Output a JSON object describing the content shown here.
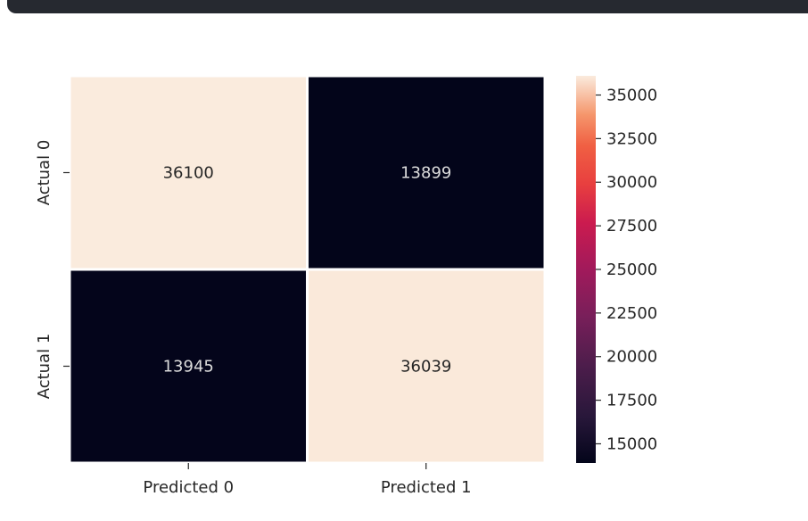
{
  "toolbar": {
    "bar_color": "#262930"
  },
  "chart_data": {
    "type": "heatmap",
    "rows": [
      "Actual 0",
      "Actual 1"
    ],
    "columns": [
      "Predicted 0",
      "Predicted 1"
    ],
    "values": [
      [
        36100,
        13899
      ],
      [
        13945,
        36039
      ]
    ],
    "colorbar": {
      "min": 13899,
      "max": 36100,
      "ticks": [
        15000,
        17500,
        20000,
        22500,
        25000,
        27500,
        30000,
        32500,
        35000
      ],
      "tick_labels": [
        "15000",
        "17500",
        "20000",
        "22500",
        "25000",
        "27500",
        "30000",
        "32500",
        "35000"
      ]
    },
    "colormap": "rocket",
    "colors": {
      "low": "#03051a",
      "high": "#faebdd",
      "text_on_light": "#262626",
      "text_on_dark": "#dcdcdc",
      "cell_border": "#ffffff"
    },
    "title": "",
    "xlabel": "",
    "ylabel": ""
  }
}
